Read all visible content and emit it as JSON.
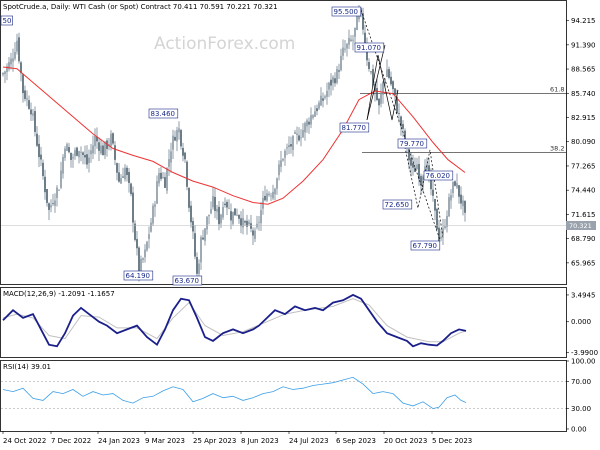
{
  "chart_data": [
    {
      "type": "candlestick",
      "title": "SpotCrude.a, Daily:  WTI Cash (or Spot) Contract  70.411 70.591 70.221 70.321",
      "watermark": "ActionForex.com",
      "ylim": [
        63.5,
        96.5
      ],
      "y_ticks": [
        "94.215",
        "91.390",
        "88.565",
        "85.740",
        "82.915",
        "80.090",
        "77.265",
        "74.440",
        "71.615",
        "68.790",
        "65.965"
      ],
      "current_price": "70.321",
      "x_ticks": [
        "24 Oct 2022",
        "7 Dec 2022",
        "24 Jan 2023",
        "9 Mar 2023",
        "25 Apr 2023",
        "8 Jun 2023",
        "24 Jul 2023",
        "6 Sep 2023",
        "20 Oct 2023",
        "5 Dec 2023"
      ],
      "close_path": [
        [
          0,
          88.0
        ],
        [
          8,
          89.5
        ],
        [
          14,
          92.0
        ],
        [
          20,
          86.0
        ],
        [
          28,
          84.0
        ],
        [
          34,
          80.0
        ],
        [
          40,
          76.0
        ],
        [
          46,
          72.0
        ],
        [
          50,
          73.5
        ],
        [
          56,
          75.0
        ],
        [
          62,
          80.0
        ],
        [
          68,
          78.0
        ],
        [
          76,
          79.5
        ],
        [
          84,
          77.5
        ],
        [
          92,
          80.5
        ],
        [
          100,
          79.0
        ],
        [
          108,
          80.5
        ],
        [
          116,
          75.5
        ],
        [
          122,
          77.0
        ],
        [
          128,
          73.5
        ],
        [
          132,
          69.0
        ],
        [
          136,
          65.0
        ],
        [
          142,
          67.0
        ],
        [
          146,
          69.5
        ],
        [
          150,
          72.0
        ],
        [
          156,
          76.5
        ],
        [
          162,
          75.5
        ],
        [
          168,
          79.5
        ],
        [
          172,
          81.0
        ],
        [
          176,
          81.5
        ],
        [
          182,
          78.0
        ],
        [
          186,
          73.0
        ],
        [
          190,
          69.0
        ],
        [
          194,
          64.5
        ],
        [
          198,
          68.5
        ],
        [
          204,
          71.0
        ],
        [
          210,
          73.0
        ],
        [
          216,
          71.0
        ],
        [
          222,
          73.5
        ],
        [
          228,
          71.5
        ],
        [
          234,
          72.0
        ],
        [
          240,
          70.5
        ],
        [
          246,
          70.0
        ],
        [
          252,
          69.0
        ],
        [
          256,
          71.0
        ],
        [
          262,
          74.0
        ],
        [
          270,
          74.5
        ],
        [
          280,
          78.5
        ],
        [
          290,
          80.0
        ],
        [
          300,
          81.5
        ],
        [
          310,
          83.5
        ],
        [
          320,
          85.0
        ],
        [
          328,
          87.0
        ],
        [
          334,
          88.0
        ],
        [
          340,
          90.5
        ],
        [
          346,
          91.5
        ],
        [
          350,
          92.0
        ],
        [
          356,
          95.0
        ],
        [
          360,
          93.5
        ],
        [
          364,
          90.0
        ],
        [
          368,
          88.0
        ],
        [
          372,
          86.0
        ],
        [
          376,
          84.0
        ],
        [
          380,
          87.0
        ],
        [
          384,
          88.5
        ],
        [
          390,
          86.0
        ],
        [
          394,
          84.0
        ],
        [
          398,
          82.0
        ],
        [
          404,
          79.0
        ],
        [
          410,
          76.5
        ],
        [
          414,
          77.5
        ],
        [
          418,
          75.5
        ],
        [
          422,
          78.0
        ],
        [
          428,
          74.5
        ],
        [
          432,
          71.5
        ],
        [
          436,
          69.0
        ],
        [
          440,
          69.5
        ],
        [
          444,
          72.0
        ],
        [
          448,
          74.0
        ],
        [
          452,
          75.5
        ],
        [
          456,
          74.0
        ],
        [
          460,
          72.5
        ],
        [
          463,
          70.3
        ]
      ],
      "ma_path": [
        [
          0,
          88.8
        ],
        [
          14,
          88.6
        ],
        [
          30,
          87.0
        ],
        [
          50,
          85.0
        ],
        [
          70,
          83.0
        ],
        [
          90,
          81.0
        ],
        [
          110,
          79.3
        ],
        [
          130,
          78.5
        ],
        [
          150,
          77.8
        ],
        [
          170,
          76.5
        ],
        [
          190,
          75.5
        ],
        [
          210,
          74.8
        ],
        [
          230,
          73.8
        ],
        [
          250,
          73.0
        ],
        [
          265,
          72.8
        ],
        [
          280,
          73.5
        ],
        [
          300,
          75.5
        ],
        [
          320,
          78.0
        ],
        [
          340,
          81.5
        ],
        [
          356,
          85.0
        ],
        [
          372,
          86.0
        ],
        [
          390,
          85.7
        ],
        [
          410,
          83.0
        ],
        [
          430,
          80.0
        ],
        [
          445,
          78.0
        ],
        [
          462,
          76.5
        ]
      ],
      "annotations": [
        {
          "label": "95.500"
        },
        {
          "label": "91.070"
        },
        {
          "label": "83.460"
        },
        {
          "label": "81.770"
        },
        {
          "label": "79.770"
        },
        {
          "label": "76.020"
        },
        {
          "label": "72.650"
        },
        {
          "label": "67.790"
        },
        {
          "label": "64.190"
        },
        {
          "label": "63.670"
        },
        {
          "label": "50"
        }
      ],
      "fib_levels": [
        {
          "label": "61.8",
          "value": 85.74
        },
        {
          "label": "38.2",
          "value": 78.85
        }
      ]
    },
    {
      "type": "line",
      "title": "MACD(12,26,9) -1.2091 -1.1657",
      "ylim": [
        -4.6,
        4.4
      ],
      "y_ticks": [
        "3.4945",
        "0.000",
        "-3.9900"
      ],
      "series": [
        {
          "values": [
            [
              0,
              0.2
            ],
            [
              10,
              1.5
            ],
            [
              20,
              0.5
            ],
            [
              30,
              1.0
            ],
            [
              38,
              -1.0
            ],
            [
              46,
              -3.0
            ],
            [
              54,
              -3.2
            ],
            [
              62,
              -1.5
            ],
            [
              70,
              0.8
            ],
            [
              78,
              1.8
            ],
            [
              86,
              1.0
            ],
            [
              96,
              0.0
            ],
            [
              104,
              -0.5
            ],
            [
              114,
              -1.5
            ],
            [
              124,
              -1.0
            ],
            [
              134,
              -0.5
            ],
            [
              144,
              -2.0
            ],
            [
              154,
              -3.0
            ],
            [
              162,
              -1.0
            ],
            [
              170,
              1.5
            ],
            [
              178,
              3.0
            ],
            [
              186,
              2.8
            ],
            [
              194,
              0.5
            ],
            [
              202,
              -2.0
            ],
            [
              210,
              -2.5
            ],
            [
              220,
              -1.5
            ],
            [
              230,
              -1.0
            ],
            [
              240,
              -1.5
            ],
            [
              250,
              -1.0
            ],
            [
              256,
              -0.5
            ],
            [
              264,
              0.5
            ],
            [
              272,
              1.5
            ],
            [
              282,
              1.0
            ],
            [
              292,
              2.0
            ],
            [
              302,
              1.5
            ],
            [
              312,
              1.8
            ],
            [
              320,
              1.5
            ],
            [
              330,
              2.5
            ],
            [
              340,
              2.8
            ],
            [
              350,
              3.5
            ],
            [
              358,
              3.0
            ],
            [
              366,
              1.5
            ],
            [
              374,
              0.0
            ],
            [
              384,
              -1.5
            ],
            [
              394,
              -2.0
            ],
            [
              404,
              -2.5
            ],
            [
              410,
              -3.2
            ],
            [
              418,
              -2.8
            ],
            [
              426,
              -3.0
            ],
            [
              434,
              -3.1
            ],
            [
              440,
              -2.5
            ],
            [
              448,
              -1.5
            ],
            [
              456,
              -1.0
            ],
            [
              463,
              -1.2
            ]
          ]
        },
        {
          "values": [
            [
              0,
              0.5
            ],
            [
              14,
              1.0
            ],
            [
              30,
              0.5
            ],
            [
              46,
              -1.8
            ],
            [
              62,
              -2.2
            ],
            [
              78,
              0.8
            ],
            [
              96,
              0.6
            ],
            [
              114,
              -0.8
            ],
            [
              134,
              -0.8
            ],
            [
              154,
              -2.2
            ],
            [
              170,
              0.5
            ],
            [
              186,
              2.5
            ],
            [
              202,
              -0.5
            ],
            [
              220,
              -1.8
            ],
            [
              240,
              -1.3
            ],
            [
              264,
              0.0
            ],
            [
              282,
              1.0
            ],
            [
              302,
              1.5
            ],
            [
              330,
              2.0
            ],
            [
              350,
              3.0
            ],
            [
              366,
              2.2
            ],
            [
              384,
              -0.5
            ],
            [
              404,
              -2.0
            ],
            [
              426,
              -2.6
            ],
            [
              440,
              -2.6
            ],
            [
              456,
              -1.5
            ],
            [
              463,
              -1.2
            ]
          ]
        }
      ]
    },
    {
      "type": "line",
      "title": "RSI(14) 39.01",
      "ylim": [
        -3,
        100
      ],
      "y_ticks": [
        "100.00",
        "70.00",
        "30.00",
        "0.00"
      ],
      "series": [
        {
          "values": [
            [
              0,
              58
            ],
            [
              10,
              55
            ],
            [
              20,
              60
            ],
            [
              30,
              45
            ],
            [
              40,
              42
            ],
            [
              50,
              55
            ],
            [
              60,
              52
            ],
            [
              70,
              58
            ],
            [
              80,
              48
            ],
            [
              90,
              55
            ],
            [
              100,
              50
            ],
            [
              110,
              52
            ],
            [
              120,
              42
            ],
            [
              130,
              38
            ],
            [
              140,
              46
            ],
            [
              150,
              48
            ],
            [
              160,
              56
            ],
            [
              170,
              62
            ],
            [
              180,
              58
            ],
            [
              190,
              40
            ],
            [
              200,
              45
            ],
            [
              210,
              52
            ],
            [
              220,
              46
            ],
            [
              230,
              48
            ],
            [
              240,
              42
            ],
            [
              250,
              46
            ],
            [
              260,
              52
            ],
            [
              270,
              55
            ],
            [
              280,
              62
            ],
            [
              290,
              58
            ],
            [
              300,
              60
            ],
            [
              310,
              64
            ],
            [
              320,
              66
            ],
            [
              330,
              68
            ],
            [
              340,
              72
            ],
            [
              350,
              76
            ],
            [
              360,
              66
            ],
            [
              370,
              52
            ],
            [
              380,
              55
            ],
            [
              390,
              52
            ],
            [
              400,
              38
            ],
            [
              410,
              34
            ],
            [
              420,
              40
            ],
            [
              430,
              30
            ],
            [
              436,
              32
            ],
            [
              444,
              46
            ],
            [
              452,
              50
            ],
            [
              458,
              42
            ],
            [
              463,
              39
            ]
          ]
        }
      ]
    }
  ]
}
